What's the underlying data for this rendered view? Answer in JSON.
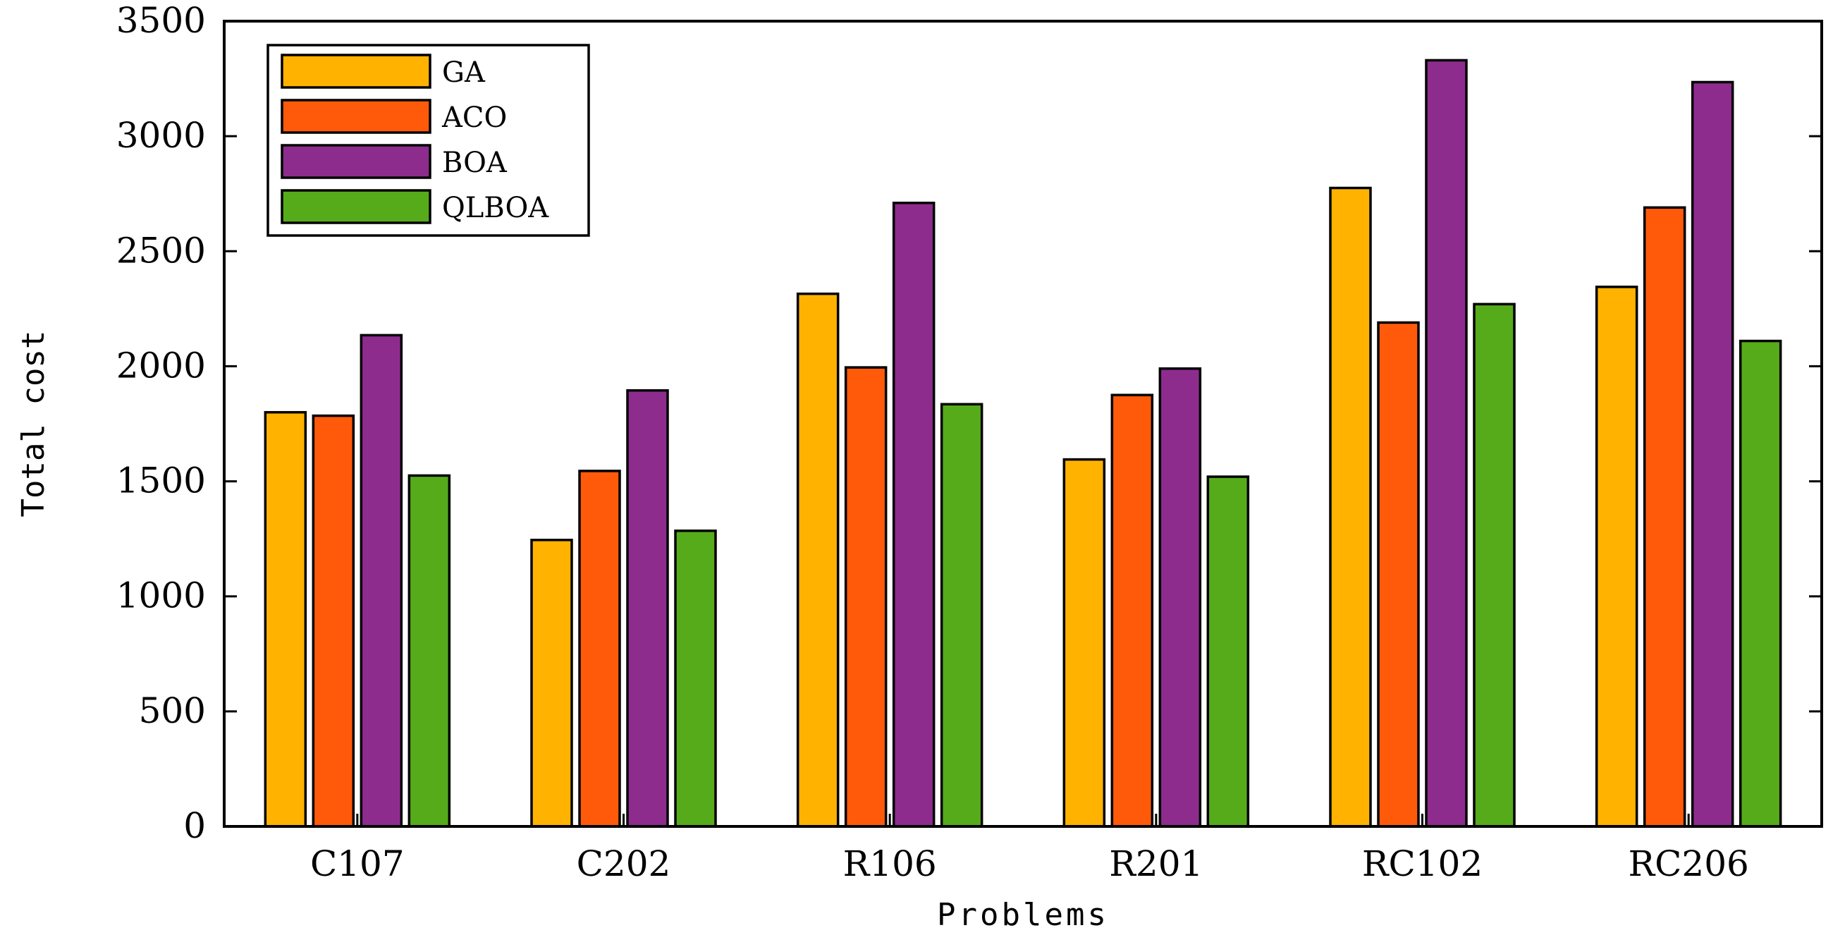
{
  "chart_data": {
    "type": "bar",
    "title": "",
    "xlabel": "Problems",
    "ylabel": "Total cost",
    "ylim": [
      0,
      3500
    ],
    "yticks": [
      0,
      500,
      1000,
      1500,
      2000,
      2500,
      3000,
      3500
    ],
    "ytick_labels": [
      "0",
      "500",
      "1000",
      "1500",
      "2000",
      "2500",
      "3000",
      "3500"
    ],
    "categories": [
      "C107",
      "C202",
      "R106",
      "R201",
      "RC102",
      "RC206"
    ],
    "series": [
      {
        "name": "GA",
        "color": "#FFB300",
        "values": [
          1800,
          1245,
          2315,
          1595,
          2775,
          2345
        ]
      },
      {
        "name": "ACO",
        "color": "#FF5A0A",
        "values": [
          1785,
          1545,
          1995,
          1875,
          2190,
          2690
        ]
      },
      {
        "name": "BOA",
        "color": "#8E2C8E",
        "values": [
          2135,
          1895,
          2710,
          1990,
          3330,
          3235
        ]
      },
      {
        "name": "QLBOA",
        "color": "#56AB1A",
        "values": [
          1525,
          1285,
          1835,
          1520,
          2270,
          2110
        ]
      }
    ],
    "grid": false,
    "legend_position": "top-left"
  }
}
